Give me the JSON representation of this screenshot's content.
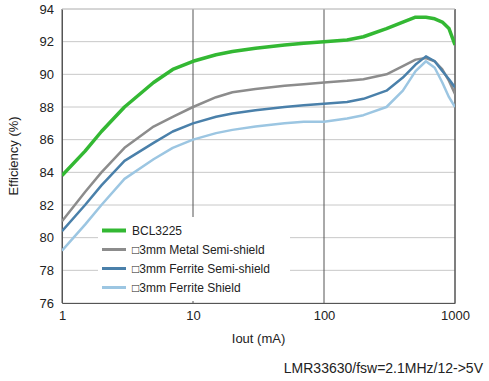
{
  "chart_data": {
    "type": "line",
    "x_label": "Iout (mA)",
    "y_label": "Efficiency (%)",
    "annotations": [
      "LMR33630/fsw=2.1MHz/12->5V"
    ],
    "log": "x",
    "grid": true,
    "legend": "lower left",
    "xlim": [
      1,
      1000
    ],
    "ylim": [
      76,
      94
    ],
    "xticks": [
      1,
      10,
      100,
      1000
    ],
    "yticks": [
      76,
      78,
      80,
      82,
      84,
      86,
      88,
      90,
      92,
      94
    ],
    "x": [
      1,
      1.5,
      2,
      3,
      5,
      7,
      10,
      15,
      20,
      30,
      50,
      70,
      100,
      150,
      200,
      300,
      400,
      500,
      600,
      700,
      800,
      900,
      1000
    ],
    "series": [
      {
        "name": "BCL3225",
        "color": "#33b833",
        "values": [
          83.8,
          85.3,
          86.5,
          88,
          89.5,
          90.3,
          90.8,
          91.2,
          91.4,
          91.6,
          91.8,
          91.9,
          92.0,
          92.1,
          92.3,
          92.8,
          93.2,
          93.5,
          93.5,
          93.4,
          93.2,
          92.8,
          91.8
        ]
      },
      {
        "name": "□3mm Metal Semi-shield",
        "color": "#8c8c8c",
        "values": [
          81,
          82.8,
          84,
          85.5,
          86.8,
          87.4,
          88,
          88.6,
          88.9,
          89.1,
          89.3,
          89.4,
          89.5,
          89.6,
          89.7,
          90,
          90.5,
          90.9,
          91.0,
          90.8,
          90.3,
          89.6,
          88.8
        ]
      },
      {
        "name": "□3mm Ferrite Semi-shield",
        "color": "#4a80aa",
        "values": [
          80.4,
          82,
          83.2,
          84.7,
          85.8,
          86.5,
          87,
          87.4,
          87.6,
          87.8,
          88,
          88.1,
          88.2,
          88.3,
          88.5,
          89,
          89.8,
          90.6,
          91.1,
          90.8,
          90.2,
          89.7,
          89.2
        ]
      },
      {
        "name": "□3mm Ferrite Shield",
        "color": "#9cc6e2",
        "values": [
          79.2,
          80.8,
          82,
          83.6,
          84.8,
          85.5,
          86,
          86.4,
          86.6,
          86.8,
          87,
          87.1,
          87.1,
          87.3,
          87.5,
          88,
          89,
          90.2,
          90.8,
          90.4,
          89.5,
          88.6,
          88
        ]
      }
    ]
  }
}
